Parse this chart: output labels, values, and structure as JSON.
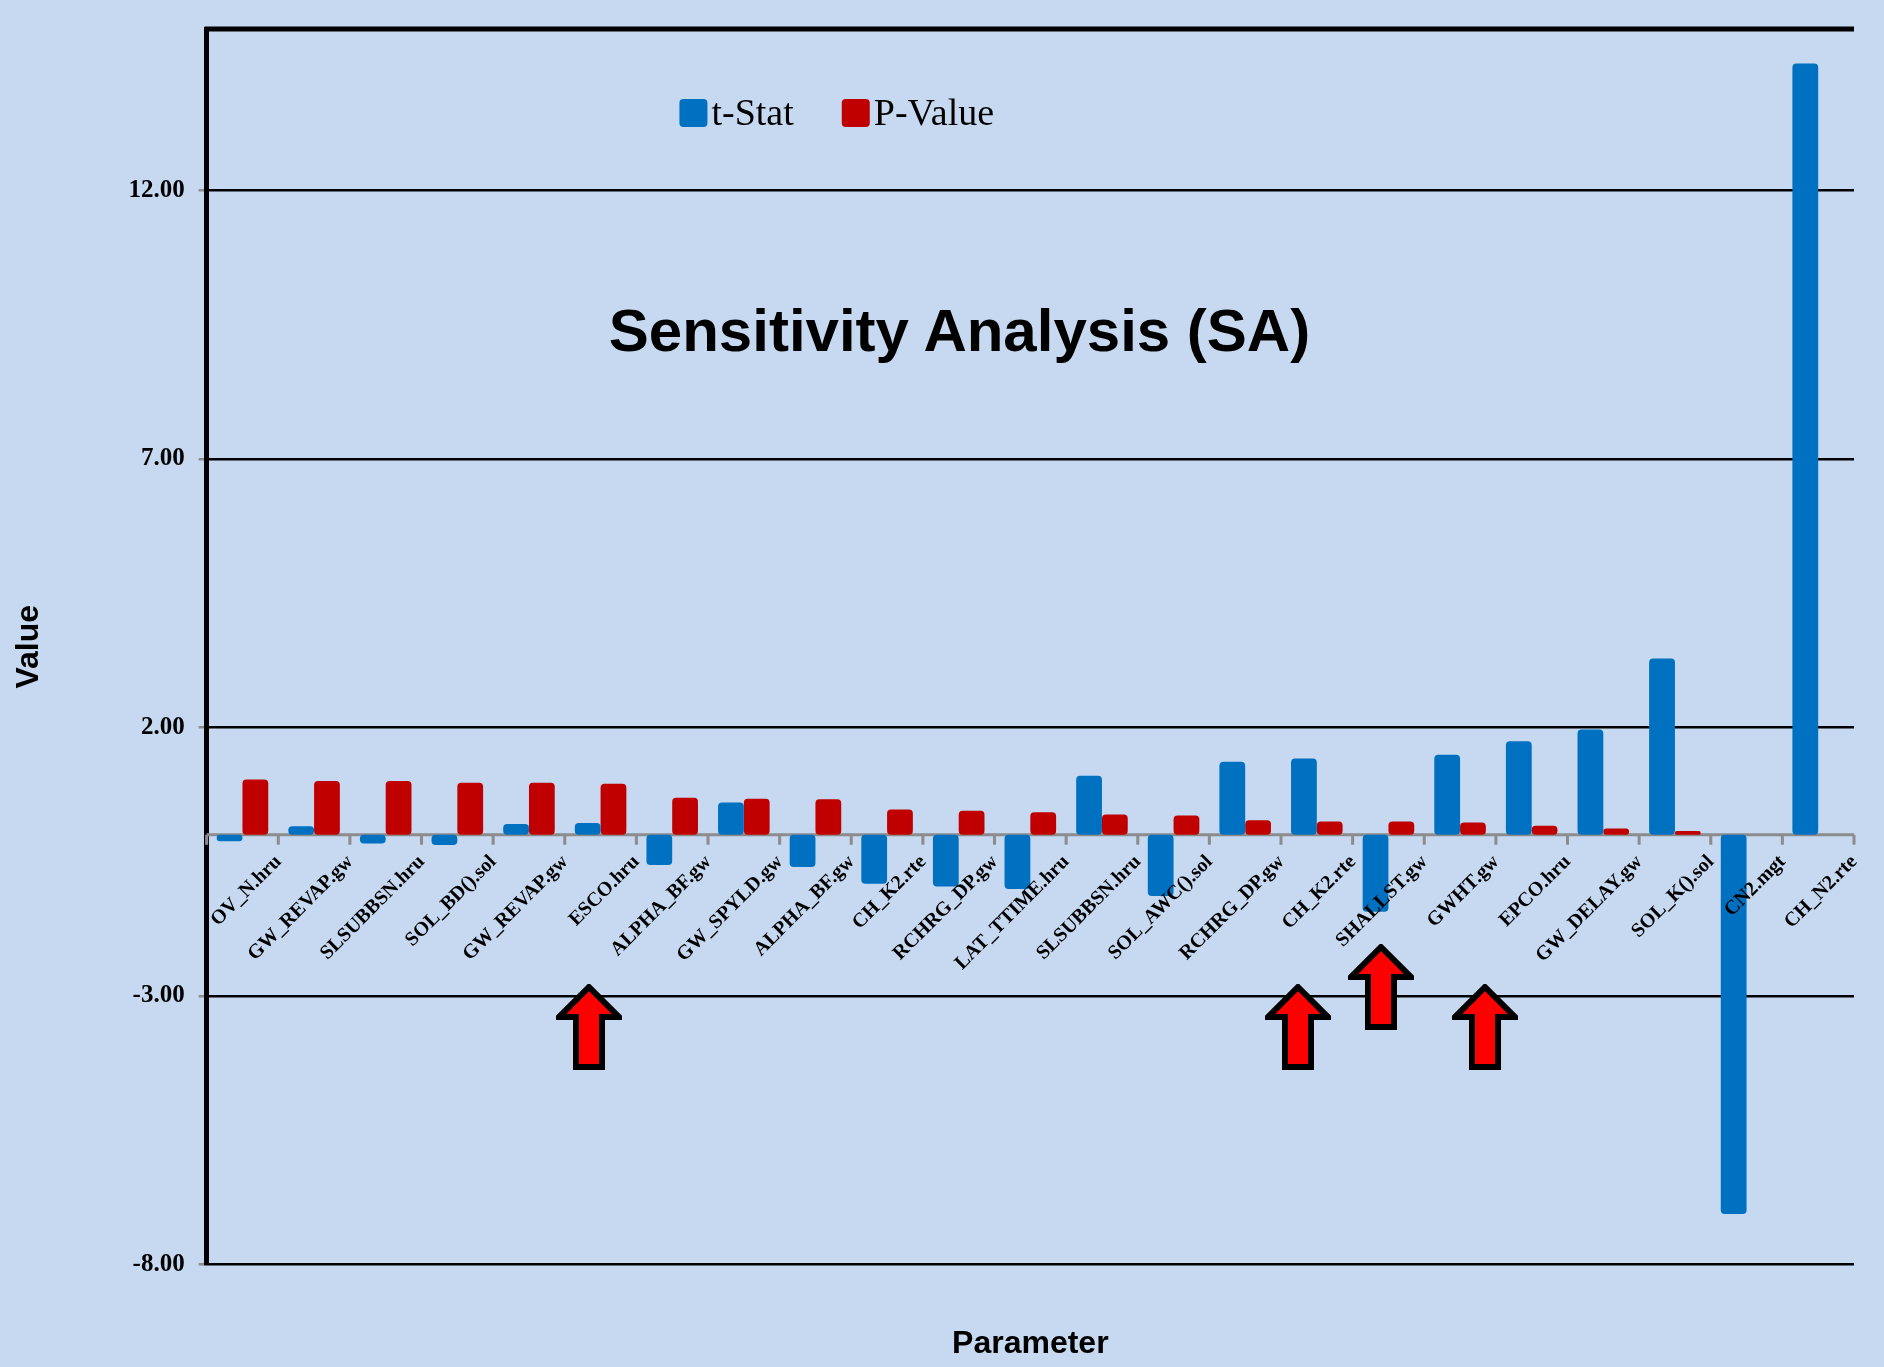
{
  "chart_data": {
    "type": "bar",
    "title": "Sensitivity Analysis (SA)",
    "xlabel": "Parameter",
    "ylabel": "Value",
    "categories": [
      "OV_N.hru",
      "GW_REVAP.gw",
      "SLSUBBSN.hru",
      "SOL_BD().sol",
      "GW_REVAP.gw",
      "ESCO.hru",
      "ALPHA_BF.gw",
      "GW_SPYLD.gw",
      "ALPHA_BF.gw",
      "CH_K2.rte",
      "RCHRG_DP.gw",
      "LAT_TTIME.hru",
      "SLSUBBSN.hru",
      "SOL_AWC().sol",
      "RCHRG_DP.gw",
      "CH_K2.rte",
      "SHALLST.gw",
      "GWHT.gw",
      "EPCO.hru",
      "GW_DELAY.gw",
      "SOL_K().sol",
      "CN2.mgt",
      "CH_N2.rte"
    ],
    "series": [
      {
        "name": "t-Stat",
        "color": "#0070c0",
        "values": [
          -0.12,
          0.16,
          -0.16,
          -0.19,
          0.2,
          0.22,
          -0.56,
          0.6,
          -0.6,
          -0.91,
          -0.96,
          -1.01,
          1.1,
          -1.14,
          1.36,
          1.42,
          -1.43,
          1.49,
          1.74,
          1.96,
          3.28,
          -7.06,
          14.36
        ]
      },
      {
        "name": "P-Value",
        "color": "#c00000",
        "values": [
          1.03,
          1.0,
          1.0,
          0.97,
          0.97,
          0.95,
          0.69,
          0.67,
          0.66,
          0.47,
          0.45,
          0.42,
          0.38,
          0.36,
          0.27,
          0.25,
          0.25,
          0.23,
          0.17,
          0.12,
          0.07,
          0,
          0
        ]
      }
    ],
    "ylim": [
      -8,
      15
    ],
    "yticks": [
      {
        "value": -8,
        "label": "-8.00"
      },
      {
        "value": -3,
        "label": "-3.00"
      },
      {
        "value": 2,
        "label": "2.00"
      },
      {
        "value": 7,
        "label": "7.00"
      },
      {
        "value": 12,
        "label": "12.00"
      }
    ],
    "grid": "y",
    "legend": "top"
  }
}
